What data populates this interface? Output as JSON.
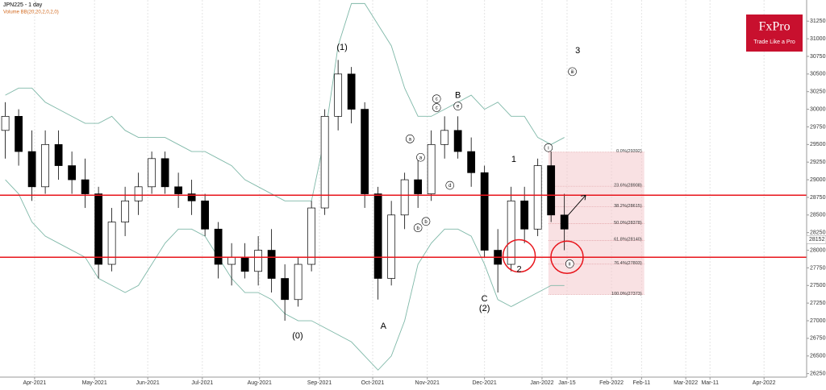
{
  "chart_data": {
    "type": "candlestick",
    "title": "JPN225 - 1 day",
    "subtitle": "Volume BB(20,20,2,0,2,0)",
    "brand": "FxPro",
    "tagline": "Trade Like a Pro",
    "xlim": [
      0,
      303
    ],
    "ylim": [
      26200,
      31550
    ],
    "xticks": [
      {
        "value": 13,
        "label": "Apr-2021"
      },
      {
        "value": 35.5,
        "label": "May-2021"
      },
      {
        "value": 55.5,
        "label": "Jun-2021"
      },
      {
        "value": 76,
        "label": "Jul-2021"
      },
      {
        "value": 97.5,
        "label": "Aug-2021"
      },
      {
        "value": 120,
        "label": "Sep-2021"
      },
      {
        "value": 140,
        "label": "Oct-2021"
      },
      {
        "value": 160.5,
        "label": "Nov-2021"
      },
      {
        "value": 182,
        "label": "Dec-2021"
      },
      {
        "value": 203.6,
        "label": "Jan-2022"
      },
      {
        "value": 213,
        "label": "Jan-15"
      },
      {
        "value": 229.7,
        "label": "Feb-2022"
      },
      {
        "value": 241,
        "label": "Feb-11"
      },
      {
        "value": 257.6,
        "label": "Mar-2022"
      },
      {
        "value": 266.7,
        "label": "Mar-11"
      },
      {
        "value": 287,
        "label": "Apr-2022"
      }
    ],
    "yticks": [
      26250,
      26500,
      26750,
      27000,
      27250,
      27500,
      27750,
      28000,
      28250,
      28500,
      28750,
      29000,
      29250,
      29500,
      29750,
      30000,
      30250,
      30500,
      30750,
      31000,
      31250
    ],
    "grid": true,
    "x": [
      2,
      7,
      12,
      17,
      22,
      27,
      32,
      37,
      42,
      47,
      52,
      57,
      62,
      67,
      72,
      77,
      82,
      87,
      92,
      97,
      102,
      107,
      112,
      117,
      122,
      127,
      132,
      137,
      142,
      147,
      152,
      157,
      162,
      167,
      172,
      177,
      182,
      187,
      192,
      197,
      202,
      207,
      212
    ],
    "open": [
      29700,
      29900,
      29400,
      28900,
      29500,
      29200,
      29000,
      28800,
      27800,
      28400,
      28700,
      28900,
      29300,
      28900,
      28800,
      28700,
      28300,
      27800,
      27900,
      27700,
      28000,
      27600,
      27300,
      27800,
      28600,
      29900,
      30500,
      30000,
      28800,
      27600,
      28500,
      29000,
      28800,
      29500,
      29700,
      29400,
      29100,
      28000,
      27800,
      28700,
      28300,
      29200,
      28500
    ],
    "high": [
      30100,
      30000,
      29700,
      29700,
      29700,
      29400,
      29300,
      28900,
      28600,
      28900,
      29100,
      29400,
      29400,
      29100,
      29000,
      28800,
      28400,
      28100,
      28100,
      28200,
      28300,
      27800,
      27900,
      28700,
      30000,
      30700,
      30600,
      30100,
      28900,
      28700,
      29100,
      29300,
      29700,
      29900,
      29900,
      29600,
      29200,
      28300,
      28900,
      28900,
      29300,
      29400,
      28800
    ],
    "low": [
      29300,
      29200,
      28700,
      28800,
      29000,
      28800,
      28600,
      27600,
      27700,
      28200,
      28500,
      28800,
      28800,
      28600,
      28500,
      28200,
      27600,
      27500,
      27600,
      27500,
      27400,
      27000,
      27200,
      27700,
      28500,
      29700,
      29800,
      28600,
      27300,
      27500,
      28300,
      28600,
      28700,
      29300,
      29300,
      28900,
      27900,
      27400,
      27700,
      28100,
      28200,
      28400,
      28000
    ],
    "close": [
      29900,
      29400,
      28900,
      29500,
      29200,
      29000,
      28800,
      27800,
      28400,
      28700,
      28900,
      29300,
      28900,
      28800,
      28700,
      28300,
      27800,
      27900,
      27700,
      28000,
      27600,
      27300,
      27800,
      28600,
      29900,
      30500,
      30000,
      28800,
      27600,
      28500,
      29000,
      28800,
      29500,
      29700,
      29400,
      29100,
      28000,
      27800,
      28700,
      28300,
      29200,
      28500,
      28300
    ],
    "bands": [
      {
        "color": "#7fb8a8",
        "values": [
          30200,
          30300,
          30300,
          30100,
          30000,
          29900,
          29800,
          29800,
          29900,
          29700,
          29600,
          29600,
          29600,
          29500,
          29400,
          29400,
          29300,
          29200,
          29000,
          28900,
          28800,
          28700,
          28700,
          28700,
          29600,
          30900,
          31500,
          31500,
          31200,
          30900,
          30300,
          29900,
          29900,
          30000,
          30100,
          30200,
          30000,
          30100,
          29900,
          29900,
          29600,
          29500,
          29600
        ]
      },
      {
        "color": "#7fb8a8",
        "values": [
          29000,
          28800,
          28400,
          28200,
          28100,
          28000,
          27900,
          27600,
          27500,
          27400,
          27500,
          27800,
          28100,
          28300,
          28300,
          28200,
          27900,
          27600,
          27400,
          27400,
          27300,
          27100,
          27000,
          27000,
          26900,
          26800,
          26700,
          26500,
          26300,
          26500,
          27000,
          27800,
          28100,
          28300,
          28300,
          28200,
          27800,
          27300,
          27200,
          27300,
          27400,
          27500,
          27500
        ]
      }
    ],
    "lines": [
      28780,
      27900
    ],
    "line_color": "#e8141b",
    "circles": [
      {
        "x": 195,
        "y": 27920
      },
      {
        "x": 213,
        "y": 27900
      }
    ],
    "last_price": 28152,
    "fib_x": [
      206,
      242
    ],
    "fib_levels": [
      {
        "value": 29392,
        "label": "0.0%(29392)"
      },
      {
        "value": 28908,
        "label": "23.6%(28908)"
      },
      {
        "value": 28615,
        "label": "38.2%(28615)"
      },
      {
        "value": 28378,
        "label": "50.0%(28378)"
      },
      {
        "value": 28140,
        "label": "61.8%(28140)"
      },
      {
        "value": 27803,
        "label": "76.4%(27803)"
      },
      {
        "value": 27373,
        "label": "100.0%(27373)"
      }
    ],
    "annotations": [
      {
        "text": "(1)",
        "x": 128.5,
        "y": 30875
      },
      {
        "text": "(0)",
        "x": 111.8,
        "y": 26784
      },
      {
        "text": "A",
        "x": 144,
        "y": 26920
      },
      {
        "text": "B",
        "x": 172,
        "y": 30193
      },
      {
        "text": "C",
        "x": 182,
        "y": 27307
      },
      {
        "text": "(2)",
        "x": 182,
        "y": 27170
      },
      {
        "text": "1",
        "x": 193,
        "y": 29284
      },
      {
        "text": "2",
        "x": 195,
        "y": 27727
      },
      {
        "text": "3",
        "x": 217,
        "y": 30830
      }
    ],
    "wave_labels": [
      {
        "text": "c",
        "x": 164,
        "y": 30148
      },
      {
        "text": "c",
        "x": 164,
        "y": 30023
      },
      {
        "text": "e",
        "x": 172,
        "y": 30045
      },
      {
        "text": "a",
        "x": 154,
        "y": 29580
      },
      {
        "text": "a",
        "x": 158,
        "y": 29318
      },
      {
        "text": "d",
        "x": 169,
        "y": 28920
      },
      {
        "text": "b",
        "x": 160,
        "y": 28409
      },
      {
        "text": "b",
        "x": 157,
        "y": 28318
      },
      {
        "text": "i",
        "x": 206,
        "y": 29455
      },
      {
        "text": "ii",
        "x": 214,
        "y": 27807
      },
      {
        "text": "iii",
        "x": 215,
        "y": 30534
      }
    ]
  }
}
